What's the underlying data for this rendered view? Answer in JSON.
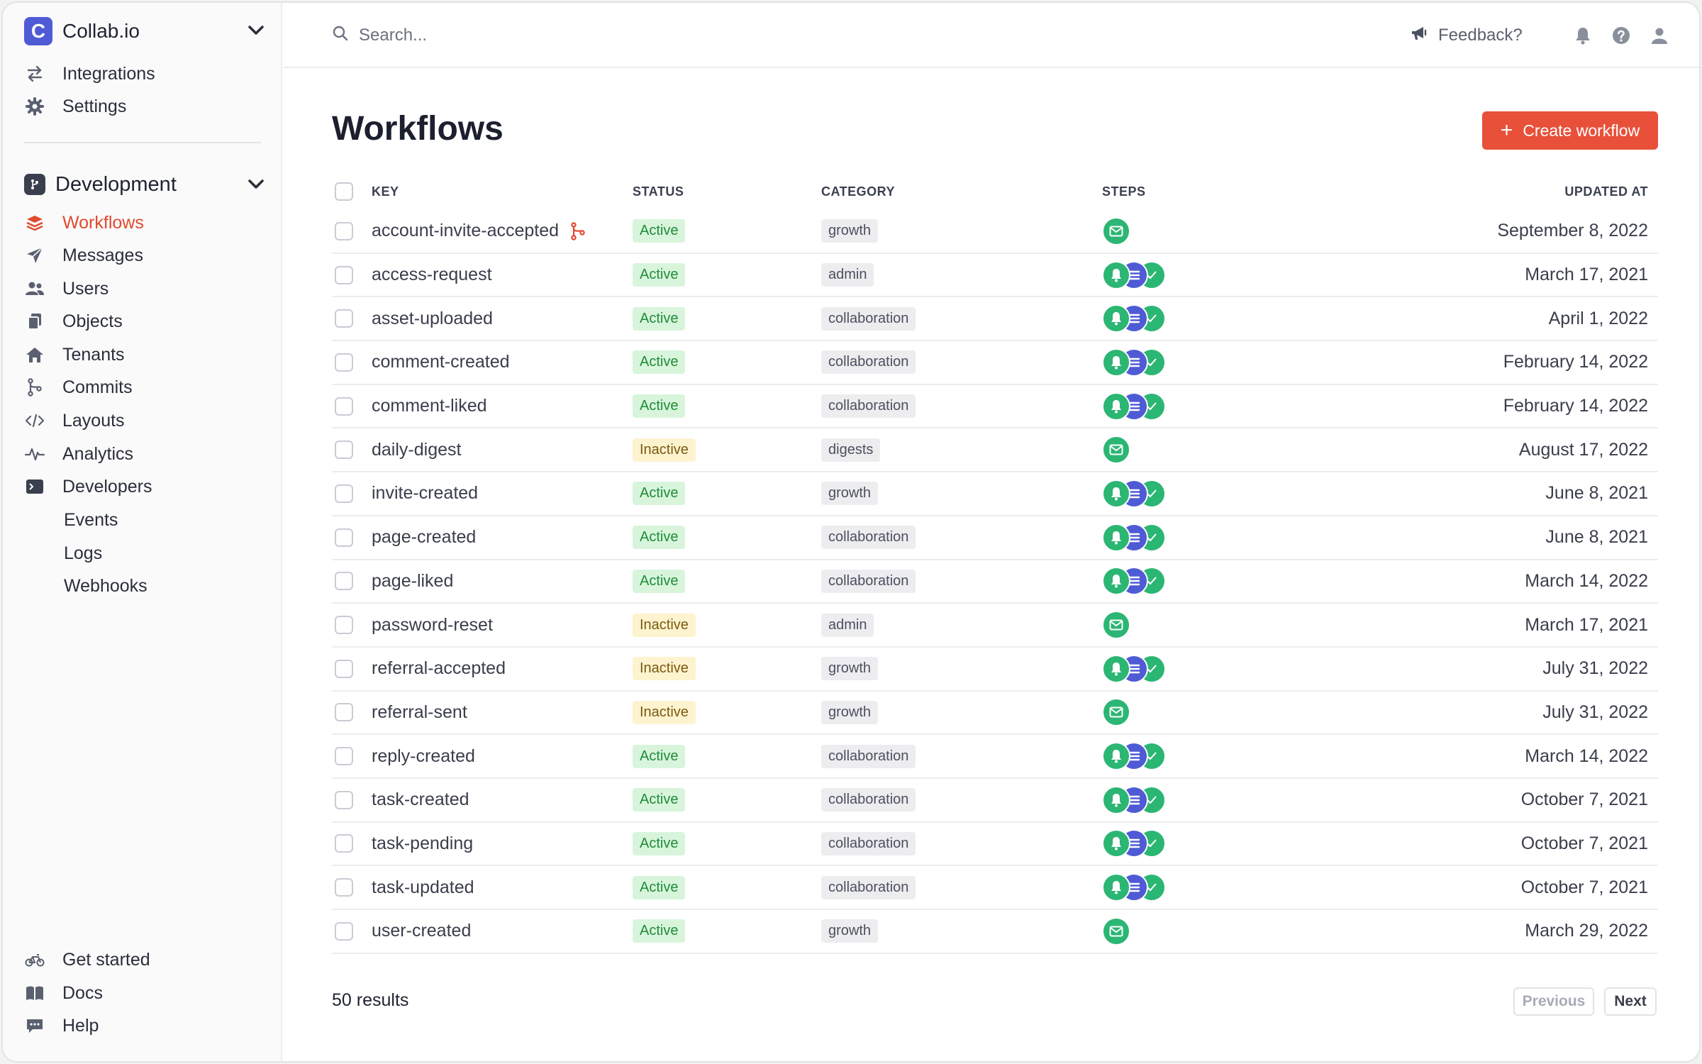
{
  "app": {
    "logo_letter": "C",
    "name": "Collab.io"
  },
  "sidebar": {
    "top_items": [
      {
        "label": "Integrations",
        "icon": "arrows-swap-icon"
      },
      {
        "label": "Settings",
        "icon": "gear-icon"
      }
    ],
    "section": {
      "name": "Development"
    },
    "items": [
      {
        "label": "Workflows",
        "icon": "layers-icon",
        "active": true
      },
      {
        "label": "Messages",
        "icon": "paper-plane-icon"
      },
      {
        "label": "Users",
        "icon": "users-icon"
      },
      {
        "label": "Objects",
        "icon": "objects-icon"
      },
      {
        "label": "Tenants",
        "icon": "house-icon"
      },
      {
        "label": "Commits",
        "icon": "git-commit-icon"
      },
      {
        "label": "Layouts",
        "icon": "code-icon"
      },
      {
        "label": "Analytics",
        "icon": "pulse-icon"
      },
      {
        "label": "Developers",
        "icon": "terminal-icon"
      }
    ],
    "sub_items": [
      {
        "label": "Events"
      },
      {
        "label": "Logs"
      },
      {
        "label": "Webhooks"
      }
    ],
    "bottom_items": [
      {
        "label": "Get started",
        "icon": "bicycle-icon"
      },
      {
        "label": "Docs",
        "icon": "book-icon"
      },
      {
        "label": "Help",
        "icon": "chat-icon"
      }
    ]
  },
  "topbar": {
    "search_placeholder": "Search...",
    "feedback_label": "Feedback?"
  },
  "main": {
    "title": "Workflows",
    "create_label": "Create workflow",
    "columns": {
      "key": "KEY",
      "status": "STATUS",
      "category": "CATEGORY",
      "steps": "STEPS",
      "updated": "UPDATED AT"
    },
    "rows": [
      {
        "key": "account-invite-accepted",
        "status": "Active",
        "category": "growth",
        "steps": "email",
        "updated": "September 8, 2022",
        "branch": true
      },
      {
        "key": "access-request",
        "status": "Active",
        "category": "admin",
        "steps": "multi",
        "updated": "March 17, 2021"
      },
      {
        "key": "asset-uploaded",
        "status": "Active",
        "category": "collaboration",
        "steps": "multi",
        "updated": "April 1, 2022"
      },
      {
        "key": "comment-created",
        "status": "Active",
        "category": "collaboration",
        "steps": "multi",
        "updated": "February 14, 2022"
      },
      {
        "key": "comment-liked",
        "status": "Active",
        "category": "collaboration",
        "steps": "multi",
        "updated": "February 14, 2022"
      },
      {
        "key": "daily-digest",
        "status": "Inactive",
        "category": "digests",
        "steps": "email",
        "updated": "August 17, 2022"
      },
      {
        "key": "invite-created",
        "status": "Active",
        "category": "growth",
        "steps": "multi",
        "updated": "June 8, 2021"
      },
      {
        "key": "page-created",
        "status": "Active",
        "category": "collaboration",
        "steps": "multi",
        "updated": "June 8, 2021"
      },
      {
        "key": "page-liked",
        "status": "Active",
        "category": "collaboration",
        "steps": "multi",
        "updated": "March 14, 2022"
      },
      {
        "key": "password-reset",
        "status": "Inactive",
        "category": "admin",
        "steps": "email",
        "updated": "March 17, 2021"
      },
      {
        "key": "referral-accepted",
        "status": "Inactive",
        "category": "growth",
        "steps": "multi",
        "updated": "July 31, 2022"
      },
      {
        "key": "referral-sent",
        "status": "Inactive",
        "category": "growth",
        "steps": "email",
        "updated": "July 31, 2022"
      },
      {
        "key": "reply-created",
        "status": "Active",
        "category": "collaboration",
        "steps": "multi",
        "updated": "March 14, 2022"
      },
      {
        "key": "task-created",
        "status": "Active",
        "category": "collaboration",
        "steps": "multi",
        "updated": "October 7, 2021"
      },
      {
        "key": "task-pending",
        "status": "Active",
        "category": "collaboration",
        "steps": "multi",
        "updated": "October 7, 2021"
      },
      {
        "key": "task-updated",
        "status": "Active",
        "category": "collaboration",
        "steps": "multi",
        "updated": "October 7, 2021"
      },
      {
        "key": "user-created",
        "status": "Active",
        "category": "growth",
        "steps": "email",
        "updated": "March 29, 2022"
      }
    ],
    "results_label": "50 results",
    "prev_label": "Previous",
    "next_label": "Next"
  },
  "colors": {
    "accent": "#e8503a",
    "active_nav": "#e04a2e",
    "step_green": "#2bb673",
    "step_blue": "#4f5bd5"
  }
}
